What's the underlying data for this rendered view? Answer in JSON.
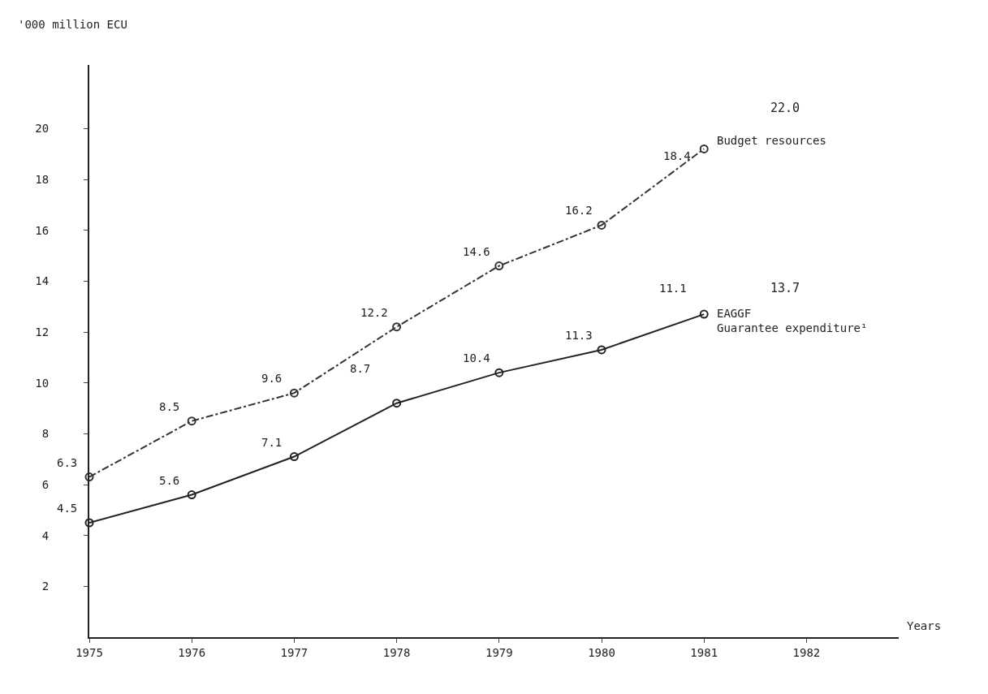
{
  "chart_data": {
    "type": "line",
    "ylabel": "'000 million ECU",
    "xlabel": "Years",
    "categories": [
      "1975",
      "1976",
      "1977",
      "1978",
      "1979",
      "1980",
      "1981",
      "1982"
    ],
    "series": [
      {
        "name": "Budget resources",
        "color": "#333333",
        "line_style": "dashed",
        "values": [
          6.3,
          8.5,
          9.6,
          12.2,
          14.6,
          16.2,
          19.2,
          null
        ],
        "value_labels": [
          "6.3",
          "8.5",
          "9.6",
          "12.2",
          "14.6",
          "16.2",
          null,
          null
        ]
      },
      {
        "name": "EAGGF Guarantee expenditure¹",
        "color": "#222222",
        "line_style": "solid",
        "values": [
          4.5,
          5.6,
          7.1,
          9.2,
          10.4,
          11.3,
          12.7,
          null
        ],
        "value_labels": [
          "4.5",
          "5.6",
          "7.1",
          null,
          "10.4",
          "11.3",
          null,
          null
        ]
      }
    ],
    "annotations": [
      "8.7",
      "18.4",
      "22.0",
      "11.1",
      "13.7"
    ],
    "ylim": [
      0,
      22.5
    ],
    "yticks": [
      2,
      4,
      6,
      8,
      10,
      12,
      14,
      16,
      18,
      20
    ],
    "marker": "circle",
    "legend": false
  }
}
